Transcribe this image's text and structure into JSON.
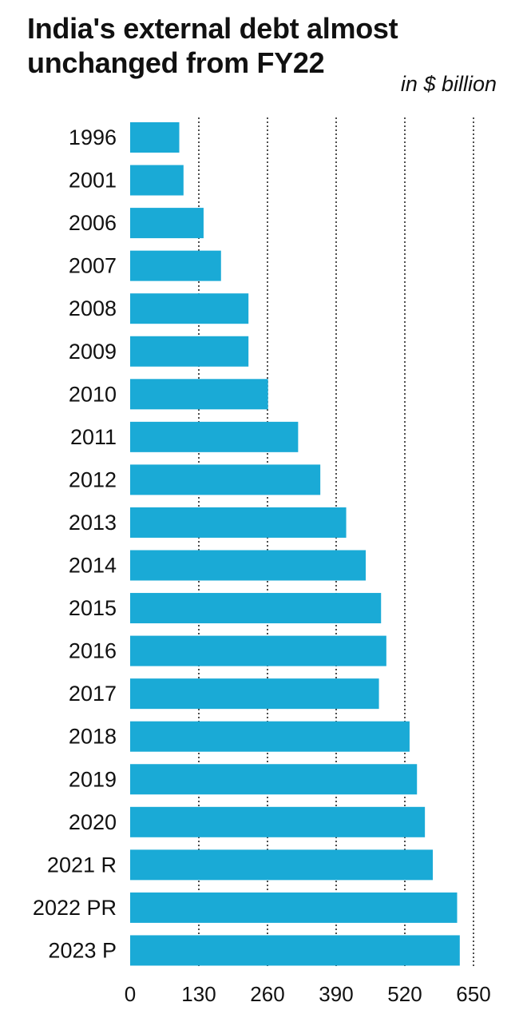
{
  "header": {
    "title": "India's external debt almost unchanged from FY22",
    "units": "in $ billion"
  },
  "chart_data": {
    "type": "bar",
    "orientation": "horizontal",
    "title": "India's external debt almost unchanged from FY22",
    "units": "in $ billion",
    "xlabel": "",
    "ylabel": "",
    "categories": [
      "1996",
      "2001",
      "2006",
      "2007",
      "2008",
      "2009",
      "2010",
      "2011",
      "2012",
      "2013",
      "2014",
      "2015",
      "2016",
      "2017",
      "2018",
      "2019",
      "2020",
      "2021 R",
      "2022 PR",
      "2023 P"
    ],
    "values": [
      93,
      101,
      139,
      172,
      224,
      224,
      261,
      318,
      360,
      409,
      446,
      475,
      485,
      471,
      529,
      543,
      558,
      573,
      619,
      624
    ],
    "xlim": [
      0,
      650
    ],
    "xticks": [
      0,
      130,
      260,
      390,
      520,
      650
    ],
    "grid": "vertical dotted lines at ticks",
    "colors": {
      "bar": "#1aaad6",
      "text": "#111111",
      "grid": "#222222"
    }
  }
}
